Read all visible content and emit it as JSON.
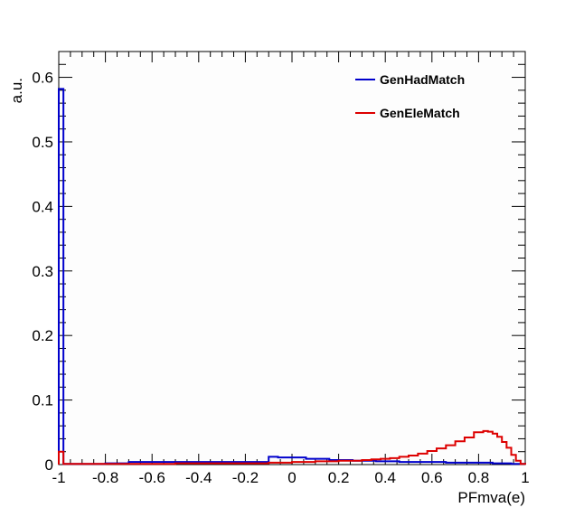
{
  "chart_data": {
    "type": "line",
    "title": "",
    "xlabel": "PFmva(e)",
    "ylabel": "a.u.",
    "xlim": [
      -1,
      1
    ],
    "ylim": [
      0,
      0.64
    ],
    "xticks": [
      -1,
      -0.8,
      -0.6,
      -0.4,
      -0.2,
      0,
      0.2,
      0.4,
      0.6,
      0.8,
      1
    ],
    "xtick_labels": [
      "-1",
      "-0.8",
      "-0.6",
      "-0.4",
      "-0.2",
      "0",
      "0.2",
      "0.4",
      "0.6",
      "0.8",
      "1"
    ],
    "yticks": [
      0,
      0.1,
      0.2,
      0.3,
      0.4,
      0.5,
      0.6
    ],
    "ytick_labels": [
      "0",
      "0.1",
      "0.2",
      "0.3",
      "0.4",
      "0.5",
      "0.6"
    ],
    "grid": false,
    "legend_position": "top-right",
    "series": [
      {
        "name": "GenHadMatch",
        "color": "#0000cc",
        "style": "step",
        "bins": [
          [
            -1.0,
            -0.98,
            0.582
          ],
          [
            -0.98,
            -0.8,
            0.001
          ],
          [
            -0.8,
            -0.7,
            0.002
          ],
          [
            -0.7,
            -0.5,
            0.004
          ],
          [
            -0.5,
            -0.1,
            0.004
          ],
          [
            -0.1,
            -0.06,
            0.012
          ],
          [
            -0.06,
            0.0,
            0.011
          ],
          [
            0.0,
            0.06,
            0.011
          ],
          [
            0.06,
            0.16,
            0.009
          ],
          [
            0.16,
            0.26,
            0.007
          ],
          [
            0.26,
            0.36,
            0.006
          ],
          [
            0.36,
            0.46,
            0.005
          ],
          [
            0.46,
            0.56,
            0.004
          ],
          [
            0.56,
            0.66,
            0.004
          ],
          [
            0.66,
            0.76,
            0.003
          ],
          [
            0.76,
            0.86,
            0.003
          ],
          [
            0.86,
            0.94,
            0.002
          ],
          [
            0.94,
            1.0,
            0.001
          ]
        ]
      },
      {
        "name": "GenEleMatch",
        "color": "#dd0000",
        "style": "step",
        "bins": [
          [
            -1.0,
            -0.98,
            0.02
          ],
          [
            -0.98,
            -0.5,
            0.001
          ],
          [
            -0.5,
            -0.1,
            0.002
          ],
          [
            -0.1,
            0.0,
            0.003
          ],
          [
            0.0,
            0.1,
            0.004
          ],
          [
            0.1,
            0.2,
            0.005
          ],
          [
            0.2,
            0.3,
            0.006
          ],
          [
            0.3,
            0.34,
            0.007
          ],
          [
            0.34,
            0.38,
            0.008
          ],
          [
            0.38,
            0.42,
            0.009
          ],
          [
            0.42,
            0.46,
            0.01
          ],
          [
            0.46,
            0.5,
            0.012
          ],
          [
            0.5,
            0.54,
            0.014
          ],
          [
            0.54,
            0.58,
            0.017
          ],
          [
            0.58,
            0.62,
            0.021
          ],
          [
            0.62,
            0.66,
            0.025
          ],
          [
            0.66,
            0.7,
            0.03
          ],
          [
            0.7,
            0.74,
            0.036
          ],
          [
            0.74,
            0.78,
            0.042
          ],
          [
            0.78,
            0.82,
            0.05
          ],
          [
            0.82,
            0.84,
            0.052
          ],
          [
            0.84,
            0.86,
            0.051
          ],
          [
            0.86,
            0.88,
            0.048
          ],
          [
            0.88,
            0.9,
            0.043
          ],
          [
            0.9,
            0.92,
            0.035
          ],
          [
            0.92,
            0.94,
            0.026
          ],
          [
            0.94,
            0.96,
            0.015
          ],
          [
            0.96,
            0.98,
            0.006
          ],
          [
            0.98,
            1.0,
            0.001
          ]
        ]
      }
    ]
  }
}
